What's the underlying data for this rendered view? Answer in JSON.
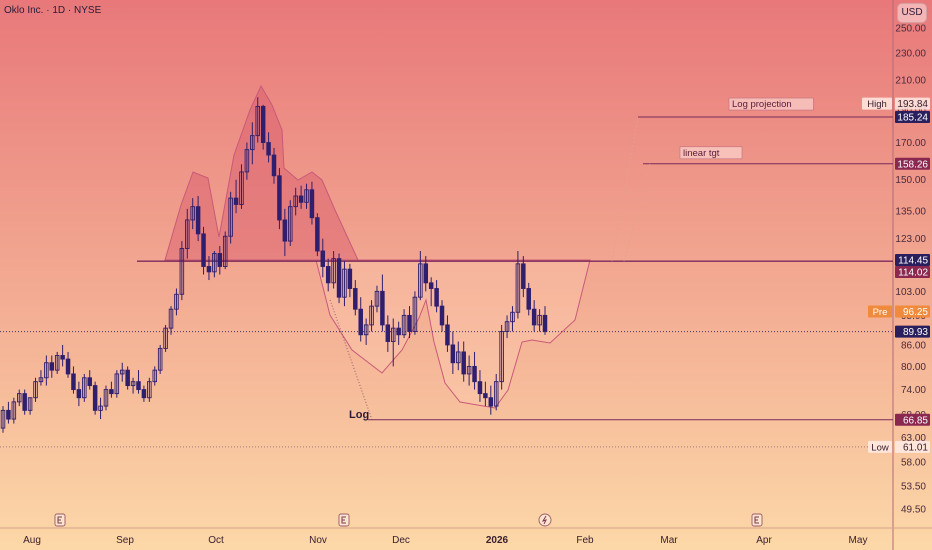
{
  "header": {
    "title": "Oklo Inc. · 1D · NYSE",
    "currency_button": "USD"
  },
  "colors": {
    "bg_top": "#e8787a",
    "bg_bottom": "#fcd8a8",
    "candle": "#2f1f6e",
    "pattern_stroke": "#c85a78",
    "pattern_fill_dark": "rgba(215,80,105,0.42)",
    "pattern_fill_light": "rgba(255,205,180,0.35)",
    "level_line": "#7a2a5a",
    "label_dark": "#2a1f5e",
    "label_maroon": "#8a2850",
    "label_orange": "#f08a3c"
  },
  "chart_data": {
    "type": "candlestick",
    "title": "",
    "xlabel": "",
    "ylabel": "",
    "y_scale": "log",
    "ylim": [
      47,
      275
    ],
    "x_ticks": [
      "Aug",
      "Sep",
      "Oct",
      "Nov",
      "Dec",
      "2026",
      "Feb",
      "Mar",
      "Apr",
      "May"
    ],
    "y_ticks": [
      "250.00",
      "230.00",
      "210.00",
      "190.00",
      "170.00",
      "150.00",
      "135.00",
      "123.00",
      "111.00",
      "103.00",
      "95.00",
      "86.00",
      "80.00",
      "74.00",
      "68.00",
      "63.00",
      "58.00",
      "53.50",
      "49.50"
    ],
    "price_labels": [
      {
        "prefix": "High",
        "value": "193.84",
        "style": "plain",
        "price": 193.84
      },
      {
        "prefix": "",
        "value": "185.24",
        "style": "dark",
        "price": 185.24
      },
      {
        "prefix": "",
        "value": "158.26",
        "style": "maroon",
        "price": 158.26
      },
      {
        "prefix": "",
        "value": "114.45",
        "style": "dark",
        "price": 114.45
      },
      {
        "prefix": "",
        "value": "114.02",
        "style": "maroon",
        "price": 114.02
      },
      {
        "prefix": "Pre",
        "value": "96.25",
        "style": "orange",
        "price": 96.25
      },
      {
        "prefix": "",
        "value": "89.93",
        "style": "dark",
        "price": 89.93
      },
      {
        "prefix": "",
        "value": "66.85",
        "style": "maroon",
        "price": 66.85
      },
      {
        "prefix": "Low",
        "value": "61.01",
        "style": "plain",
        "price": 61.01
      }
    ],
    "annotations": [
      {
        "text": "Log projection",
        "price": 185.24
      },
      {
        "text": "linear tgt",
        "price": 158.26
      },
      {
        "text": "Log",
        "price": 66.85
      }
    ],
    "levels": {
      "neckline": 114.02,
      "log_projection": 185.24,
      "linear_target": 158.26,
      "log_target": 66.85,
      "current": 89.93,
      "low": 61.01
    },
    "event_markers": [
      {
        "icon": "earnings-icon",
        "near": "Aug"
      },
      {
        "icon": "earnings-icon",
        "near": "Nov"
      },
      {
        "icon": "split-icon",
        "near": "2026"
      },
      {
        "icon": "earnings-icon",
        "near": "Apr"
      }
    ],
    "candles": [
      [
        65,
        70,
        64,
        69
      ],
      [
        69,
        71,
        66,
        67
      ],
      [
        67,
        72,
        66,
        71
      ],
      [
        71,
        74,
        70,
        73
      ],
      [
        73,
        74,
        68,
        69
      ],
      [
        69,
        72,
        68,
        72
      ],
      [
        72,
        77,
        71,
        76
      ],
      [
        76,
        79,
        75,
        77
      ],
      [
        77,
        83,
        75,
        81
      ],
      [
        81,
        83,
        77,
        79
      ],
      [
        79,
        84,
        78,
        83
      ],
      [
        83,
        86,
        80,
        82
      ],
      [
        82,
        84,
        77,
        78
      ],
      [
        78,
        80,
        73,
        74
      ],
      [
        74,
        76,
        70,
        72
      ],
      [
        72,
        78,
        71,
        77
      ],
      [
        77,
        79,
        74,
        75
      ],
      [
        75,
        76,
        68,
        69
      ],
      [
        69,
        72,
        67,
        70
      ],
      [
        70,
        75,
        69,
        74
      ],
      [
        74,
        76,
        72,
        73
      ],
      [
        73,
        79,
        72,
        78
      ],
      [
        78,
        81,
        76,
        79
      ],
      [
        79,
        80,
        74,
        75
      ],
      [
        75,
        77,
        73,
        76
      ],
      [
        76,
        79,
        73,
        74
      ],
      [
        74,
        75,
        71,
        72
      ],
      [
        72,
        77,
        71,
        76
      ],
      [
        76,
        80,
        75,
        79
      ],
      [
        79,
        86,
        78,
        85
      ],
      [
        85,
        92,
        84,
        91
      ],
      [
        91,
        98,
        89,
        97
      ],
      [
        97,
        104,
        95,
        102
      ],
      [
        102,
        122,
        100,
        119
      ],
      [
        119,
        136,
        115,
        131
      ],
      [
        131,
        141,
        127,
        137
      ],
      [
        137,
        142,
        122,
        125
      ],
      [
        125,
        128,
        109,
        112
      ],
      [
        112,
        116,
        107,
        110
      ],
      [
        110,
        118,
        108,
        117
      ],
      [
        117,
        120,
        109,
        112
      ],
      [
        112,
        126,
        111,
        124
      ],
      [
        124,
        144,
        121,
        141
      ],
      [
        141,
        150,
        134,
        138
      ],
      [
        138,
        158,
        136,
        154
      ],
      [
        154,
        170,
        150,
        166
      ],
      [
        166,
        182,
        158,
        174
      ],
      [
        174,
        198,
        170,
        192
      ],
      [
        192,
        193,
        166,
        170
      ],
      [
        170,
        176,
        159,
        163
      ],
      [
        163,
        167,
        148,
        152
      ],
      [
        152,
        156,
        127,
        131
      ],
      [
        131,
        136,
        116,
        122
      ],
      [
        122,
        140,
        120,
        137
      ],
      [
        137,
        146,
        133,
        142
      ],
      [
        142,
        147,
        136,
        139
      ],
      [
        139,
        148,
        136,
        145
      ],
      [
        145,
        149,
        129,
        132
      ],
      [
        132,
        134,
        116,
        118
      ],
      [
        118,
        123,
        108,
        112
      ],
      [
        112,
        115,
        103,
        106
      ],
      [
        106,
        118,
        104,
        115
      ],
      [
        115,
        117,
        99,
        101
      ],
      [
        101,
        114,
        98,
        111
      ],
      [
        111,
        113,
        101,
        104
      ],
      [
        104,
        107,
        95,
        97
      ],
      [
        97,
        101,
        87,
        89
      ],
      [
        89,
        94,
        86,
        92
      ],
      [
        92,
        100,
        90,
        98
      ],
      [
        98,
        105,
        96,
        103
      ],
      [
        103,
        109,
        90,
        92
      ],
      [
        92,
        95,
        84,
        87
      ],
      [
        87,
        94,
        80,
        91
      ],
      [
        91,
        93,
        86,
        89
      ],
      [
        89,
        97,
        88,
        95
      ],
      [
        95,
        98,
        88,
        90
      ],
      [
        90,
        103,
        89,
        101
      ],
      [
        101,
        118,
        100,
        113
      ],
      [
        113,
        116,
        103,
        106
      ],
      [
        106,
        108,
        98,
        104
      ],
      [
        104,
        107,
        96,
        98
      ],
      [
        98,
        100,
        90,
        92
      ],
      [
        92,
        95,
        84,
        86
      ],
      [
        86,
        90,
        78,
        81
      ],
      [
        81,
        87,
        79,
        84
      ],
      [
        84,
        87,
        76,
        78
      ],
      [
        78,
        83,
        75,
        80
      ],
      [
        80,
        84,
        74,
        76
      ],
      [
        76,
        79,
        71,
        73
      ],
      [
        73,
        76,
        70,
        72
      ],
      [
        72,
        75,
        68,
        70
      ],
      [
        70,
        78,
        69,
        76
      ],
      [
        76,
        92,
        74,
        90
      ],
      [
        90,
        95,
        88,
        93
      ],
      [
        93,
        98,
        90,
        96
      ],
      [
        96,
        118,
        94,
        113
      ],
      [
        113,
        116,
        101,
        104
      ],
      [
        104,
        106,
        95,
        97
      ],
      [
        97,
        100,
        90,
        92
      ],
      [
        92,
        97,
        90,
        95
      ],
      [
        95,
        98,
        89,
        90
      ]
    ]
  }
}
